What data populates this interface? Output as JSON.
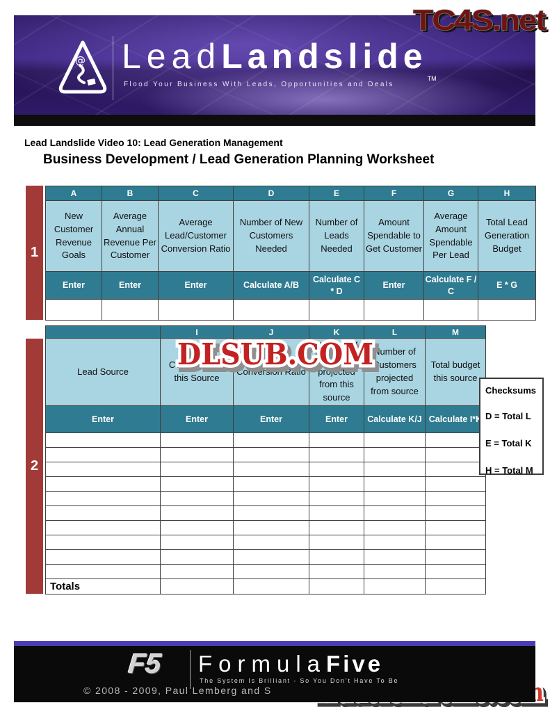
{
  "watermarks": {
    "top": "TC4S.net",
    "middle": "DLSUB.COM",
    "bottom": "TradersXtreme.com"
  },
  "banner": {
    "brand_lead": "Lead",
    "brand_landslide": "Landslide",
    "trademark": "TM",
    "tagline": "Flood Your Business With Leads, Opportunities and Deals"
  },
  "heading": {
    "subtitle": "Lead Landslide Video 10: Lead Generation Management",
    "title": "Business Development / Lead Generation Planning Worksheet"
  },
  "section1": {
    "row_label": "1",
    "columns": [
      {
        "letter": "A",
        "desc": "New Customer Revenue Goals",
        "action": "Enter"
      },
      {
        "letter": "B",
        "desc": "Average Annual Revenue Per Customer",
        "action": "Enter"
      },
      {
        "letter": "C",
        "desc": "Average Lead/Customer Conversion Ratio",
        "action": "Enter"
      },
      {
        "letter": "D",
        "desc": "Number of New Customers Needed",
        "action": "Calculate A/B"
      },
      {
        "letter": "E",
        "desc": "Number of Leads Needed",
        "action": "Calculate C * D"
      },
      {
        "letter": "F",
        "desc": "Amount Spendable to Get Customer",
        "action": "Enter"
      },
      {
        "letter": "G",
        "desc": "Average Amount Spendable Per Lead",
        "action": "Calculate F / C"
      },
      {
        "letter": "H",
        "desc": "Total Lead Generation Budget",
        "action": "E * G"
      }
    ]
  },
  "section2": {
    "row_label": "2",
    "columns": [
      {
        "letter": "",
        "desc": "Lead Source",
        "action": "Enter"
      },
      {
        "letter": "I",
        "desc": "Cost of Leads this Source",
        "action": "Enter"
      },
      {
        "letter": "J",
        "desc": "Conversion Ratio",
        "action": "Enter"
      },
      {
        "letter": "K",
        "desc": "Number of Leads projected from this source",
        "action": "Enter"
      },
      {
        "letter": "L",
        "desc": "Number of Customers projected from source",
        "action": "Calculate K/J"
      },
      {
        "letter": "M",
        "desc": "Total budget this source",
        "action": "Calculate I*K"
      }
    ],
    "empty_row_count": 10,
    "totals_label": "Totals"
  },
  "checksums": {
    "title": "Checksums",
    "items": [
      "D = Total L",
      "E = Total K",
      "H = Total M"
    ]
  },
  "footer": {
    "logo": "F5",
    "brand_formula": "Formula",
    "brand_five": "Five",
    "tagline": "The System Is Brilliant - So You Don't Have To Be",
    "copyright": "© 2008 - 2009, Paul Lemberg and S"
  },
  "colors": {
    "header_teal": "#2f7b91",
    "cell_light_blue": "#a9d4e1",
    "sidebar_red": "#a23b38",
    "banner_purple": "#3b2480",
    "footer_accent_purple": "#4a3cb5",
    "watermark_red": "#c32222",
    "watermark_dark_red": "#6e1410"
  }
}
